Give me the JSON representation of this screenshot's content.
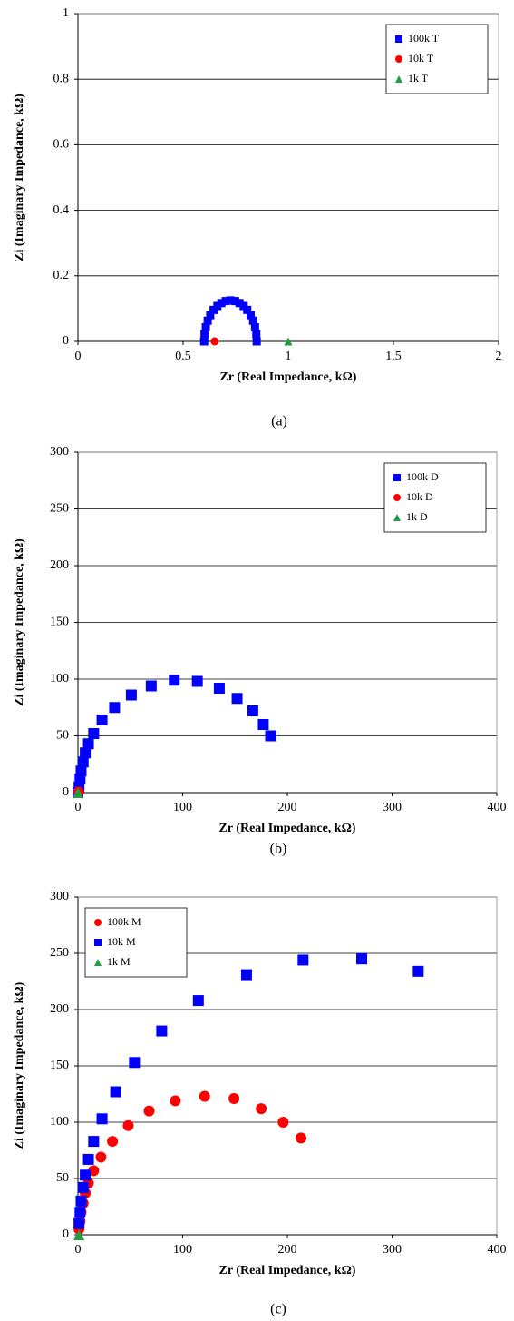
{
  "captions": [
    "(a)",
    "(b)",
    "(c)"
  ],
  "chart_data": [
    {
      "type": "scatter",
      "xlabel": "Zr (Real Impedance, kΩ)",
      "ylabel": "Zi (Imaginary Impedance, kΩ)",
      "xlim": [
        0,
        2
      ],
      "xticks": [
        0,
        0.5,
        1,
        1.5,
        2
      ],
      "ylim": [
        0,
        1
      ],
      "yticks": [
        0,
        0.2,
        0.4,
        0.6,
        0.8,
        1
      ],
      "grid": true,
      "legend": "upper right",
      "series": [
        {
          "name": "100k T",
          "color": "#0000ff",
          "marker": "square",
          "x": [
            0.85,
            0.848,
            0.842,
            0.833,
            0.821,
            0.805,
            0.788,
            0.768,
            0.747,
            0.725,
            0.703,
            0.682,
            0.663,
            0.645,
            0.629,
            0.617,
            0.608,
            0.602,
            0.6
          ],
          "values": [
            0,
            0.022,
            0.043,
            0.063,
            0.08,
            0.096,
            0.108,
            0.117,
            0.123,
            0.125,
            0.123,
            0.117,
            0.108,
            0.096,
            0.08,
            0.063,
            0.043,
            0.022,
            0
          ]
        },
        {
          "name": "10k T",
          "color": "#ff0000",
          "marker": "circle",
          "x": [
            0.65
          ],
          "values": [
            0
          ]
        },
        {
          "name": "1k T",
          "color": "#20a040",
          "marker": "triangle",
          "x": [
            1.0
          ],
          "values": [
            0
          ]
        }
      ]
    },
    {
      "type": "scatter",
      "xlabel": "Zr (Real Impedance, kΩ)",
      "ylabel": "Zi (Imaginary Impedance, kΩ)",
      "xlim": [
        0,
        400
      ],
      "xticks": [
        0,
        100,
        200,
        300,
        400
      ],
      "ylim": [
        0,
        300
      ],
      "yticks": [
        0,
        50,
        100,
        150,
        200,
        250,
        300
      ],
      "grid": true,
      "legend": "upper right",
      "series": [
        {
          "name": "100k D",
          "color": "#0000ff",
          "marker": "square",
          "x": [
            0,
            1,
            2,
            3,
            5,
            7,
            10,
            15,
            23,
            35,
            51,
            70,
            92,
            114,
            135,
            152,
            167,
            177,
            184
          ],
          "values": [
            0,
            5,
            12,
            19,
            27,
            35,
            43,
            52,
            64,
            75,
            86,
            94,
            99,
            98,
            92,
            83,
            72,
            60,
            50
          ]
        },
        {
          "name": "10k D",
          "color": "#ff0000",
          "marker": "circle",
          "x": [
            0.5
          ],
          "values": [
            0.5
          ]
        },
        {
          "name": "1k D",
          "color": "#20a040",
          "marker": "triangle",
          "x": [
            0
          ],
          "values": [
            0
          ]
        }
      ]
    },
    {
      "type": "scatter",
      "xlabel": "Zr (Real Impedance, kΩ)",
      "ylabel": "Zi (Imaginary Impedance, kΩ)",
      "xlim": [
        0,
        400
      ],
      "xticks": [
        0,
        100,
        200,
        300,
        400
      ],
      "ylim": [
        0,
        300
      ],
      "yticks": [
        0,
        50,
        100,
        150,
        200,
        250,
        300
      ],
      "grid": true,
      "legend": "upper left",
      "series": [
        {
          "name": "100k M",
          "color": "#ff0000",
          "marker": "circle",
          "x": [
            1,
            2,
            3,
            5,
            7,
            10,
            15,
            22,
            33,
            48,
            68,
            93,
            121,
            149,
            175,
            196,
            213
          ],
          "values": [
            5,
            12,
            20,
            28,
            37,
            46,
            57,
            69,
            83,
            97,
            110,
            119,
            123,
            121,
            112,
            100,
            86
          ]
        },
        {
          "name": "10k M",
          "color": "#0000ff",
          "marker": "square",
          "x": [
            1,
            2,
            3,
            5,
            7,
            10,
            15,
            23,
            36,
            54,
            80,
            115,
            161,
            215,
            271,
            325
          ],
          "values": [
            10,
            20,
            30,
            42,
            53,
            67,
            83,
            103,
            127,
            153,
            181,
            208,
            231,
            244,
            245,
            234
          ]
        },
        {
          "name": "1k M",
          "color": "#20a040",
          "marker": "triangle",
          "x": [
            1
          ],
          "values": [
            0
          ]
        }
      ]
    }
  ]
}
